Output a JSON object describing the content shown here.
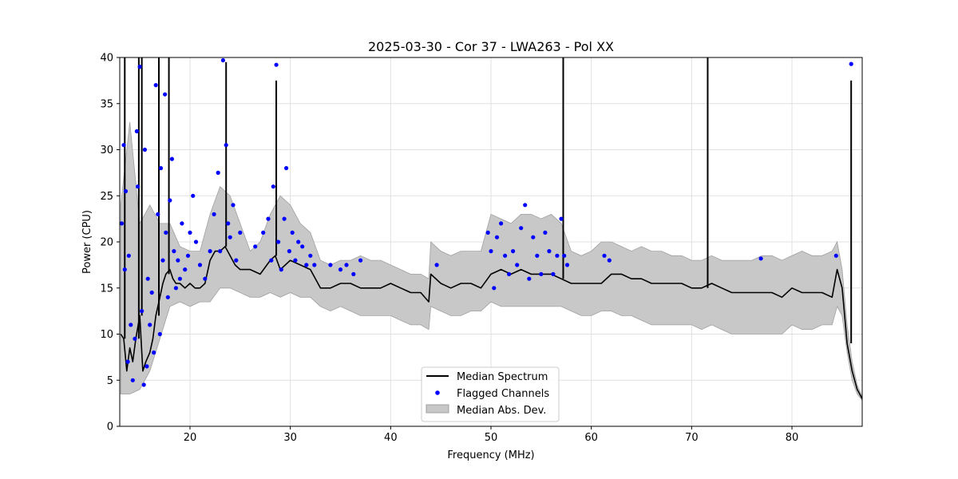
{
  "chart_data": {
    "type": "line",
    "title": "2025-03-30 - Cor 37 - LWA263 - Pol XX",
    "xlabel": "Frequency (MHz)",
    "ylabel": "Power (CPU)",
    "xlim": [
      13,
      87
    ],
    "ylim": [
      0,
      40
    ],
    "xticks": [
      20,
      30,
      40,
      50,
      60,
      70,
      80
    ],
    "yticks": [
      0,
      5,
      10,
      15,
      20,
      25,
      30,
      35,
      40
    ],
    "grid": true,
    "legend": {
      "placement": "bottom-center",
      "entries": [
        "Median Spectrum",
        "Flagged Channels",
        "Median Abs. Dev."
      ]
    },
    "colors": {
      "median": "#000000",
      "flagged": "#0000ff",
      "mad_band": "#c8c8c8",
      "mad_edge": "#a0a0a0",
      "grid": "#e0e0e0"
    },
    "series": [
      {
        "name": "Median Spectrum",
        "x": [
          13.1,
          13.4,
          13.7,
          14.0,
          14.3,
          14.6,
          15.0,
          15.3,
          15.6,
          16.0,
          16.3,
          16.6,
          17.0,
          17.3,
          17.6,
          18.0,
          18.3,
          18.6,
          19.0,
          19.5,
          20.0,
          20.5,
          21.0,
          21.5,
          22.0,
          22.5,
          23.0,
          23.5,
          24.0,
          24.5,
          25.0,
          26.0,
          27.0,
          28.0,
          28.5,
          29.0,
          29.5,
          30.0,
          31.0,
          32.0,
          33.0,
          34.0,
          35.0,
          36.0,
          37.0,
          38.0,
          39.0,
          40.0,
          41.0,
          42.0,
          43.0,
          43.8,
          44.0,
          45.0,
          46.0,
          47.0,
          48.0,
          49.0,
          50.0,
          51.0,
          52.0,
          53.0,
          54.0,
          55.0,
          56.0,
          57.0,
          58.0,
          59.0,
          60.0,
          61.0,
          62.0,
          63.0,
          64.0,
          65.0,
          66.0,
          67.0,
          68.0,
          69.0,
          70.0,
          71.0,
          72.0,
          73.0,
          74.0,
          75.0,
          76.0,
          77.0,
          78.0,
          79.0,
          80.0,
          81.0,
          82.0,
          83.0,
          84.0,
          84.5,
          85.0,
          85.5,
          86.0,
          86.5,
          87.0
        ],
        "y": [
          10.0,
          9.5,
          6.0,
          8.5,
          7.0,
          9.5,
          12.0,
          6.0,
          7.0,
          8.0,
          9.5,
          12.0,
          14.0,
          15.5,
          16.5,
          17.0,
          16.0,
          15.5,
          15.5,
          15.0,
          15.5,
          15.0,
          15.0,
          15.5,
          18.0,
          19.0,
          19.0,
          19.5,
          18.5,
          17.5,
          17.0,
          17.0,
          16.5,
          18.0,
          18.5,
          17.0,
          17.5,
          18.0,
          17.5,
          17.0,
          15.0,
          15.0,
          15.5,
          15.5,
          15.0,
          15.0,
          15.0,
          15.5,
          15.0,
          14.5,
          14.5,
          13.5,
          16.5,
          15.5,
          15.0,
          15.5,
          15.5,
          15.0,
          16.5,
          17.0,
          16.5,
          17.0,
          16.5,
          16.5,
          16.5,
          16.0,
          15.5,
          15.5,
          15.5,
          15.5,
          16.5,
          16.5,
          16.0,
          16.0,
          15.5,
          15.5,
          15.5,
          15.5,
          15.0,
          15.0,
          15.5,
          15.0,
          14.5,
          14.5,
          14.5,
          14.5,
          14.5,
          14.0,
          15.0,
          14.5,
          14.5,
          14.5,
          14.0,
          17.0,
          15.0,
          9.0,
          6.0,
          4.0,
          3.0
        ]
      },
      {
        "name": "Median Abs. Dev.",
        "x": [
          13.1,
          14.0,
          15.0,
          16.0,
          17.0,
          18.0,
          19.0,
          20.0,
          21.0,
          22.0,
          23.0,
          24.0,
          25.0,
          26.0,
          27.0,
          28.0,
          29.0,
          30.0,
          31.0,
          32.0,
          33.0,
          34.0,
          35.0,
          36.0,
          37.0,
          38.0,
          39.0,
          40.0,
          41.0,
          42.0,
          43.0,
          43.8,
          44.0,
          45.0,
          46.0,
          47.0,
          48.0,
          49.0,
          50.0,
          51.0,
          52.0,
          53.0,
          54.0,
          55.0,
          56.0,
          57.0,
          58.0,
          59.0,
          60.0,
          61.0,
          62.0,
          63.0,
          64.0,
          65.0,
          66.0,
          67.0,
          68.0,
          69.0,
          70.0,
          71.0,
          72.0,
          73.0,
          74.0,
          75.0,
          76.0,
          77.0,
          78.0,
          79.0,
          80.0,
          81.0,
          82.0,
          83.0,
          84.0,
          84.5,
          85.0,
          85.5,
          86.0,
          86.5,
          87.0
        ],
        "upper": [
          24.0,
          33.0,
          22.0,
          24.0,
          22.0,
          22.0,
          19.5,
          19.0,
          19.0,
          23.0,
          26.0,
          25.0,
          22.0,
          19.0,
          20.0,
          23.0,
          25.0,
          24.0,
          22.0,
          21.0,
          18.0,
          17.5,
          18.0,
          18.0,
          18.5,
          18.0,
          18.0,
          17.5,
          17.0,
          16.5,
          16.5,
          16.0,
          20.0,
          19.0,
          18.5,
          19.0,
          19.0,
          19.0,
          23.0,
          22.5,
          22.0,
          23.0,
          23.0,
          22.5,
          23.0,
          22.0,
          19.0,
          18.5,
          19.0,
          20.0,
          20.0,
          19.5,
          19.0,
          19.5,
          19.0,
          19.0,
          18.5,
          18.5,
          18.0,
          18.0,
          18.5,
          18.0,
          18.0,
          18.0,
          18.0,
          18.5,
          18.5,
          18.0,
          18.5,
          19.0,
          18.5,
          18.5,
          19.0,
          20.0,
          17.0,
          11.0,
          7.0,
          4.5,
          3.2
        ],
        "lower": [
          3.5,
          3.5,
          4.0,
          6.0,
          9.5,
          13.0,
          13.5,
          13.0,
          13.5,
          13.5,
          15.0,
          15.0,
          14.5,
          14.0,
          14.0,
          14.5,
          14.0,
          14.5,
          14.0,
          14.0,
          13.0,
          12.5,
          13.0,
          12.5,
          12.0,
          12.0,
          12.0,
          12.0,
          11.5,
          11.0,
          11.0,
          10.5,
          13.0,
          12.5,
          12.0,
          12.0,
          12.5,
          12.5,
          13.5,
          13.0,
          13.0,
          13.0,
          13.0,
          13.0,
          13.0,
          13.0,
          12.5,
          12.0,
          12.0,
          12.5,
          12.5,
          12.0,
          12.0,
          11.5,
          11.0,
          11.0,
          11.0,
          11.0,
          11.0,
          10.5,
          11.0,
          10.5,
          10.0,
          10.0,
          10.0,
          10.0,
          10.0,
          10.0,
          11.0,
          10.5,
          10.5,
          11.0,
          11.0,
          13.0,
          12.0,
          8.0,
          5.0,
          3.5,
          2.8
        ]
      },
      {
        "name": "Flagged Channels",
        "x": [
          13.2,
          13.4,
          13.5,
          13.6,
          13.8,
          13.9,
          14.1,
          14.3,
          14.5,
          14.7,
          14.8,
          15.0,
          15.2,
          15.4,
          15.5,
          15.7,
          15.8,
          16.0,
          16.2,
          16.4,
          16.6,
          16.8,
          17.0,
          17.1,
          17.3,
          17.5,
          17.6,
          17.8,
          18.0,
          18.2,
          18.4,
          18.6,
          18.8,
          19.0,
          19.2,
          19.5,
          19.8,
          20.0,
          20.3,
          20.6,
          21.0,
          21.5,
          22.0,
          22.4,
          22.8,
          23.0,
          23.3,
          23.6,
          23.8,
          24.0,
          24.3,
          24.6,
          25.0,
          26.5,
          27.3,
          27.8,
          28.1,
          28.3,
          28.6,
          28.8,
          29.1,
          29.4,
          29.6,
          29.9,
          30.2,
          30.5,
          30.8,
          31.2,
          31.6,
          32.0,
          32.4,
          34.0,
          35.0,
          35.6,
          36.3,
          37.0,
          44.6,
          49.7,
          50.0,
          50.3,
          50.6,
          51.0,
          51.4,
          51.8,
          52.2,
          52.6,
          53.0,
          53.4,
          53.8,
          54.2,
          54.6,
          55.0,
          55.4,
          55.8,
          56.2,
          56.6,
          57.0,
          57.3,
          57.6,
          61.3,
          61.8,
          76.9,
          84.4,
          85.9
        ],
        "y": [
          22.0,
          30.5,
          17.0,
          25.5,
          7.0,
          18.5,
          11.0,
          5.0,
          9.5,
          32.0,
          26.0,
          39.0,
          12.5,
          4.5,
          30.0,
          6.5,
          16.0,
          11.0,
          14.5,
          8.0,
          37.0,
          23.0,
          10.0,
          28.0,
          18.0,
          36.0,
          21.0,
          14.0,
          24.5,
          29.0,
          19.0,
          15.0,
          18.0,
          16.0,
          22.0,
          17.0,
          18.5,
          21.0,
          25.0,
          20.0,
          17.5,
          16.0,
          19.0,
          23.0,
          27.5,
          19.0,
          39.7,
          30.5,
          22.0,
          20.5,
          24.0,
          18.0,
          21.0,
          19.5,
          21.0,
          22.5,
          18.0,
          26.0,
          39.2,
          20.0,
          17.0,
          22.5,
          28.0,
          19.0,
          21.0,
          18.0,
          20.0,
          19.5,
          17.5,
          18.5,
          17.5,
          17.5,
          17.0,
          17.5,
          16.5,
          18.0,
          17.5,
          21.0,
          19.0,
          15.0,
          20.5,
          22.0,
          18.5,
          16.5,
          19.0,
          17.5,
          21.5,
          24.0,
          16.0,
          20.5,
          18.5,
          16.5,
          21.0,
          19.0,
          16.5,
          18.5,
          22.5,
          18.5,
          17.5,
          18.5,
          18.0,
          18.2,
          18.5,
          39.3
        ]
      }
    ],
    "spikes": [
      {
        "x": 13.5,
        "peak": 40
      },
      {
        "x": 14.9,
        "peak": 40
      },
      {
        "x": 15.2,
        "peak": 40
      },
      {
        "x": 16.9,
        "peak": 40
      },
      {
        "x": 17.9,
        "peak": 40
      },
      {
        "x": 23.6,
        "peak": 39.5
      },
      {
        "x": 28.6,
        "peak": 37.5
      },
      {
        "x": 57.2,
        "peak": 40
      },
      {
        "x": 71.6,
        "peak": 40
      },
      {
        "x": 85.9,
        "peak": 37.5
      }
    ]
  }
}
